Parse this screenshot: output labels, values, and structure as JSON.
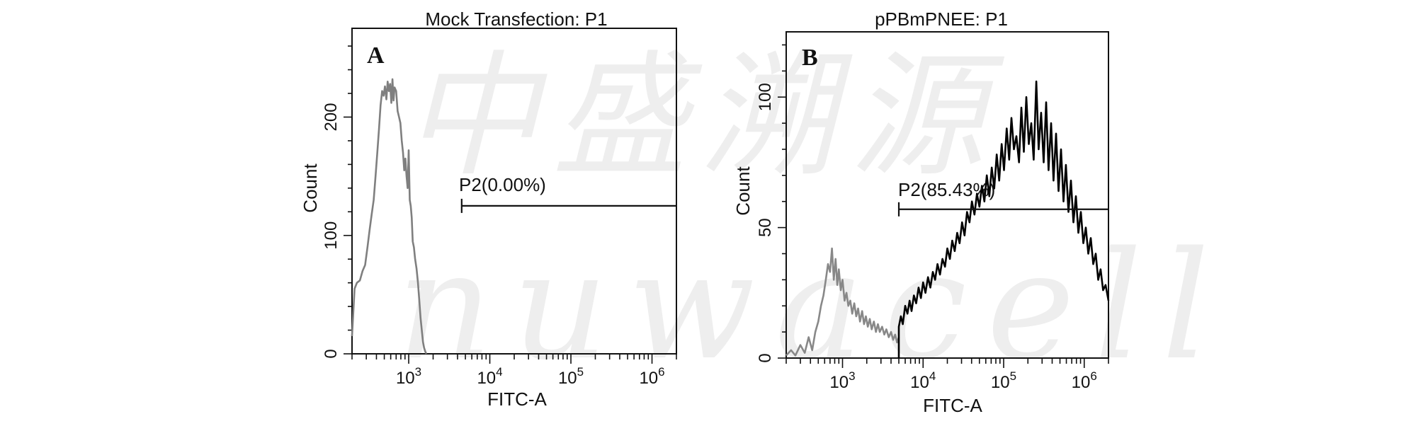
{
  "watermark": {
    "line1": "中盛溯源",
    "line2": "nuwacell"
  },
  "chart_data": [
    {
      "type": "histogram",
      "panel_letter": "A",
      "title": "Mock Transfection: P1",
      "xlabel": "FITC-A",
      "ylabel": "Count",
      "xscale": "log",
      "xlim": [
        200,
        2000000
      ],
      "ylim": [
        0,
        275
      ],
      "x_ticks": [
        {
          "value": 1000,
          "base": "10",
          "exp": "3"
        },
        {
          "value": 10000,
          "base": "10",
          "exp": "4"
        },
        {
          "value": 100000,
          "base": "10",
          "exp": "5"
        },
        {
          "value": 1000000,
          "base": "10",
          "exp": "6"
        }
      ],
      "y_ticks": [
        {
          "value": 0,
          "label": "0"
        },
        {
          "value": 100,
          "label": "100"
        },
        {
          "value": 200,
          "label": "200"
        }
      ],
      "gate": {
        "label": "P2(0.00%)",
        "x_start": 4500,
        "x_end": 2000000,
        "y": 125
      },
      "series": [
        {
          "color": "#7f7f7f",
          "points": [
            [
              200,
              15
            ],
            [
              215,
              55
            ],
            [
              230,
              60
            ],
            [
              250,
              62
            ],
            [
              270,
              70
            ],
            [
              290,
              75
            ],
            [
              310,
              90
            ],
            [
              330,
              105
            ],
            [
              350,
              118
            ],
            [
              370,
              130
            ],
            [
              390,
              150
            ],
            [
              410,
              170
            ],
            [
              430,
              190
            ],
            [
              450,
              210
            ],
            [
              470,
              222
            ],
            [
              490,
              218
            ],
            [
              510,
              226
            ],
            [
              530,
              215
            ],
            [
              550,
              230
            ],
            [
              570,
              222
            ],
            [
              590,
              228
            ],
            [
              610,
              212
            ],
            [
              630,
              232
            ],
            [
              650,
              214
            ],
            [
              670,
              225
            ],
            [
              700,
              222
            ],
            [
              730,
              205
            ],
            [
              760,
              200
            ],
            [
              790,
              195
            ],
            [
              820,
              180
            ],
            [
              850,
              170
            ],
            [
              880,
              155
            ],
            [
              910,
              165
            ],
            [
              940,
              150
            ],
            [
              970,
              140
            ],
            [
              1000,
              172
            ],
            [
              1030,
              130
            ],
            [
              1060,
              125
            ],
            [
              1090,
              115
            ],
            [
              1120,
              95
            ],
            [
              1160,
              90
            ],
            [
              1200,
              80
            ],
            [
              1250,
              72
            ],
            [
              1300,
              60
            ],
            [
              1350,
              45
            ],
            [
              1400,
              30
            ],
            [
              1450,
              20
            ],
            [
              1500,
              10
            ],
            [
              1550,
              5
            ],
            [
              1600,
              2
            ],
            [
              1650,
              0
            ]
          ]
        }
      ]
    },
    {
      "type": "histogram",
      "panel_letter": "B",
      "title": "pPBmPNEE: P1",
      "xlabel": "FITC-A",
      "ylabel": "Count",
      "xscale": "log",
      "xlim": [
        200,
        2000000
      ],
      "ylim": [
        0,
        125
      ],
      "x_ticks": [
        {
          "value": 1000,
          "base": "10",
          "exp": "3"
        },
        {
          "value": 10000,
          "base": "10",
          "exp": "4"
        },
        {
          "value": 100000,
          "base": "10",
          "exp": "5"
        },
        {
          "value": 1000000,
          "base": "10",
          "exp": "6"
        }
      ],
      "y_ticks": [
        {
          "value": 0,
          "label": "0"
        },
        {
          "value": 50,
          "label": "50"
        },
        {
          "value": 100,
          "label": "100"
        }
      ],
      "gate": {
        "label": "P2(85.43%)",
        "x_start": 5000,
        "x_end": 2000000,
        "y": 57
      },
      "series": [
        {
          "color": "#888888",
          "points": [
            [
              200,
              1
            ],
            [
              230,
              3
            ],
            [
              260,
              1
            ],
            [
              300,
              5
            ],
            [
              340,
              2
            ],
            [
              380,
              8
            ],
            [
              420,
              3
            ],
            [
              460,
              10
            ],
            [
              500,
              14
            ],
            [
              540,
              20
            ],
            [
              580,
              24
            ],
            [
              620,
              30
            ],
            [
              660,
              36
            ],
            [
              700,
              33
            ],
            [
              740,
              42
            ],
            [
              780,
              30
            ],
            [
              820,
              38
            ],
            [
              860,
              28
            ],
            [
              900,
              34
            ],
            [
              950,
              26
            ],
            [
              1000,
              30
            ],
            [
              1060,
              22
            ],
            [
              1120,
              25
            ],
            [
              1180,
              20
            ],
            [
              1250,
              22
            ],
            [
              1320,
              17
            ],
            [
              1400,
              21
            ],
            [
              1480,
              16
            ],
            [
              1560,
              19
            ],
            [
              1650,
              14
            ],
            [
              1750,
              18
            ],
            [
              1850,
              13
            ],
            [
              1950,
              16
            ],
            [
              2060,
              12
            ],
            [
              2180,
              15
            ],
            [
              2300,
              11
            ],
            [
              2450,
              14
            ],
            [
              2600,
              10
            ],
            [
              2750,
              13
            ],
            [
              2900,
              10
            ],
            [
              3100,
              12
            ],
            [
              3300,
              9
            ],
            [
              3500,
              11
            ],
            [
              3750,
              8
            ],
            [
              4000,
              10
            ],
            [
              4250,
              7
            ],
            [
              4500,
              9
            ],
            [
              4750,
              6
            ],
            [
              5000,
              8
            ]
          ]
        },
        {
          "color": "#000000",
          "points": [
            [
              5000,
              0
            ],
            [
              5000,
              12
            ],
            [
              5300,
              16
            ],
            [
              5600,
              13
            ],
            [
              6000,
              20
            ],
            [
              6400,
              17
            ],
            [
              6800,
              22
            ],
            [
              7200,
              18
            ],
            [
              7700,
              24
            ],
            [
              8200,
              21
            ],
            [
              8800,
              27
            ],
            [
              9400,
              23
            ],
            [
              10000,
              29
            ],
            [
              10700,
              25
            ],
            [
              11500,
              31
            ],
            [
              12300,
              27
            ],
            [
              13200,
              33
            ],
            [
              14100,
              30
            ],
            [
              15100,
              36
            ],
            [
              16200,
              32
            ],
            [
              17400,
              38
            ],
            [
              18700,
              35
            ],
            [
              20000,
              42
            ],
            [
              21500,
              38
            ],
            [
              23000,
              45
            ],
            [
              24700,
              41
            ],
            [
              26500,
              48
            ],
            [
              28400,
              44
            ],
            [
              30500,
              52
            ],
            [
              32700,
              47
            ],
            [
              35100,
              56
            ],
            [
              37700,
              52
            ],
            [
              40400,
              60
            ],
            [
              43400,
              55
            ],
            [
              46600,
              63
            ],
            [
              50000,
              58
            ],
            [
              53700,
              66
            ],
            [
              57600,
              60
            ],
            [
              61800,
              70
            ],
            [
              66400,
              62
            ],
            [
              71200,
              73
            ],
            [
              76400,
              65
            ],
            [
              82000,
              78
            ],
            [
              88000,
              68
            ],
            [
              94500,
              82
            ],
            [
              101000,
              72
            ],
            [
              109000,
              88
            ],
            [
              117000,
              76
            ],
            [
              125000,
              92
            ],
            [
              134000,
              80
            ],
            [
              144000,
              85
            ],
            [
              155000,
              75
            ],
            [
              166000,
              96
            ],
            [
              178000,
              79
            ],
            [
              191000,
              100
            ],
            [
              205000,
              82
            ],
            [
              220000,
              90
            ],
            [
              236000,
              76
            ],
            [
              254000,
              106
            ],
            [
              272000,
              80
            ],
            [
              292000,
              94
            ],
            [
              314000,
              75
            ],
            [
              337000,
              98
            ],
            [
              361000,
              72
            ],
            [
              388000,
              90
            ],
            [
              416000,
              68
            ],
            [
              447000,
              86
            ],
            [
              480000,
              64
            ],
            [
              515000,
              80
            ],
            [
              553000,
              60
            ],
            [
              593000,
              74
            ],
            [
              637000,
              56
            ],
            [
              684000,
              68
            ],
            [
              734000,
              52
            ],
            [
              788000,
              62
            ],
            [
              846000,
              48
            ],
            [
              908000,
              56
            ],
            [
              974000,
              44
            ],
            [
              1046000,
              50
            ],
            [
              1123000,
              40
            ],
            [
              1205000,
              46
            ],
            [
              1293000,
              36
            ],
            [
              1388000,
              40
            ],
            [
              1490000,
              30
            ],
            [
              1599000,
              34
            ],
            [
              1716000,
              26
            ],
            [
              1842000,
              28
            ],
            [
              2000000,
              22
            ]
          ]
        }
      ]
    }
  ]
}
